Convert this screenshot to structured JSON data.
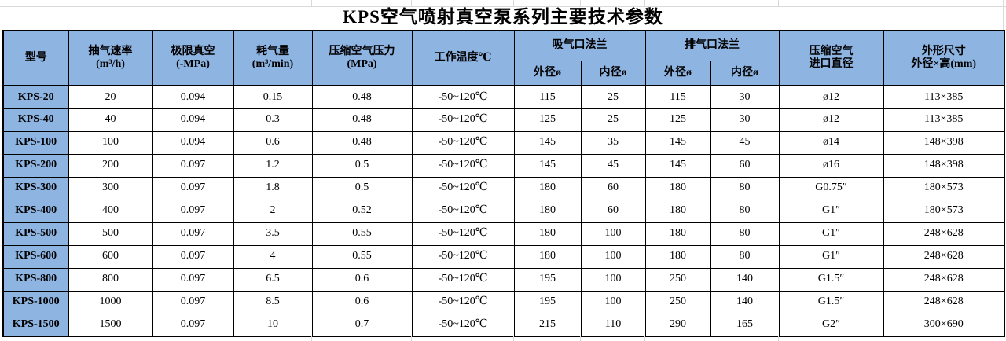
{
  "title": "KPS空气喷射真空泵系列主要技术参数",
  "colors": {
    "header_fill": "#8EB4E2",
    "border": "#000000",
    "gridline": "#D9D9D9"
  },
  "table": {
    "headers": {
      "model": "型号",
      "pumping_speed": "抽气速率\n(m³/h)",
      "ultimate_vacuum": "极限真空\n(-MPa)",
      "air_consumption": "耗气量\n(m³/min)",
      "compressed_air_pressure": "压缩空气压力\n(MPa)",
      "working_temperature": "工作温度℃",
      "suction_flange": "吸气口法兰",
      "exhaust_flange": "排气口法兰",
      "outer_dia": "外径ø",
      "inner_dia": "内径ø",
      "air_inlet_dia": "压缩空气\n进口直径",
      "dimensions": "外形尺寸\n外径×高(mm)"
    },
    "rows": [
      {
        "cells": [
          "KPS-20",
          "20",
          "0.094",
          "0.15",
          "0.48",
          "-50~120℃",
          "115",
          "25",
          "115",
          "30",
          "ø12",
          "113×385"
        ]
      },
      {
        "cells": [
          "KPS-40",
          "40",
          "0.094",
          "0.3",
          "0.48",
          "-50~120℃",
          "125",
          "25",
          "125",
          "30",
          "ø12",
          "113×385"
        ]
      },
      {
        "cells": [
          "KPS-100",
          "100",
          "0.094",
          "0.6",
          "0.48",
          "-50~120℃",
          "145",
          "35",
          "145",
          "45",
          "ø14",
          "148×398"
        ]
      },
      {
        "cells": [
          "KPS-200",
          "200",
          "0.097",
          "1.2",
          "0.5",
          "-50~120℃",
          "145",
          "45",
          "145",
          "60",
          "ø16",
          "148×398"
        ]
      },
      {
        "cells": [
          "KPS-300",
          "300",
          "0.097",
          "1.8",
          "0.5",
          "-50~120℃",
          "180",
          "60",
          "180",
          "80",
          "G0.75″",
          "180×573"
        ]
      },
      {
        "cells": [
          "KPS-400",
          "400",
          "0.097",
          "2",
          "0.52",
          "-50~120℃",
          "180",
          "60",
          "180",
          "80",
          "G1″",
          "180×573"
        ]
      },
      {
        "cells": [
          "KPS-500",
          "500",
          "0.097",
          "3.5",
          "0.55",
          "-50~120℃",
          "180",
          "100",
          "180",
          "80",
          "G1″",
          "248×628"
        ]
      },
      {
        "cells": [
          "KPS-600",
          "600",
          "0.097",
          "4",
          "0.55",
          "-50~120℃",
          "180",
          "100",
          "180",
          "80",
          "G1″",
          "248×628"
        ]
      },
      {
        "cells": [
          "KPS-800",
          "800",
          "0.097",
          "6.5",
          "0.6",
          "-50~120℃",
          "195",
          "100",
          "250",
          "140",
          "G1.5″",
          "248×628"
        ]
      },
      {
        "cells": [
          "KPS-1000",
          "1000",
          "0.097",
          "8.5",
          "0.6",
          "-50~120℃",
          "195",
          "100",
          "250",
          "140",
          "G1.5″",
          "248×628"
        ]
      },
      {
        "cells": [
          "KPS-1500",
          "1500",
          "0.097",
          "10",
          "0.7",
          "-50~120℃",
          "215",
          "110",
          "290",
          "165",
          "G2″",
          "300×690"
        ]
      }
    ]
  }
}
